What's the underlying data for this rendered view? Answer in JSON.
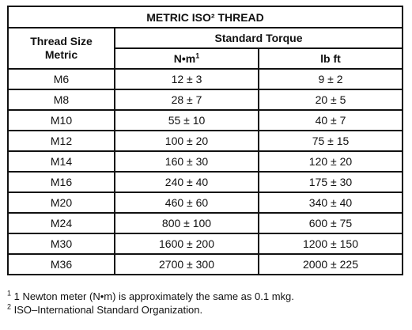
{
  "table": {
    "title": "METRIC ISO² THREAD",
    "thread_size_header_line1": "Thread Size",
    "thread_size_header_line2": "Metric",
    "standard_torque_header": "Standard Torque",
    "nm_header": "N•m",
    "nm_header_sup": "1",
    "lbft_header": "lb ft",
    "rows": [
      {
        "size": "M6",
        "nm": "12 ± 3",
        "lbft": "9 ± 2"
      },
      {
        "size": "M8",
        "nm": "28 ± 7",
        "lbft": "20 ± 5"
      },
      {
        "size": "M10",
        "nm": "55 ± 10",
        "lbft": "40 ± 7"
      },
      {
        "size": "M12",
        "nm": "100 ± 20",
        "lbft": "75 ± 15"
      },
      {
        "size": "M14",
        "nm": "160 ± 30",
        "lbft": "120 ± 20"
      },
      {
        "size": "M16",
        "nm": "240 ± 40",
        "lbft": "175 ± 30"
      },
      {
        "size": "M20",
        "nm": "460 ± 60",
        "lbft": "340 ± 40"
      },
      {
        "size": "M24",
        "nm": "800 ± 100",
        "lbft": "600 ± 75"
      },
      {
        "size": "M30",
        "nm": "1600 ± 200",
        "lbft": "1200 ± 150"
      },
      {
        "size": "M36",
        "nm": "2700 ± 300",
        "lbft": "2000 ± 225"
      }
    ]
  },
  "footnotes": {
    "note1_marker": "1",
    "note1": " 1 Newton meter (N•m) is approximately the same as 0.1 mkg.",
    "note2_marker": "2",
    "note2": " ISO–International Standard Organization."
  }
}
